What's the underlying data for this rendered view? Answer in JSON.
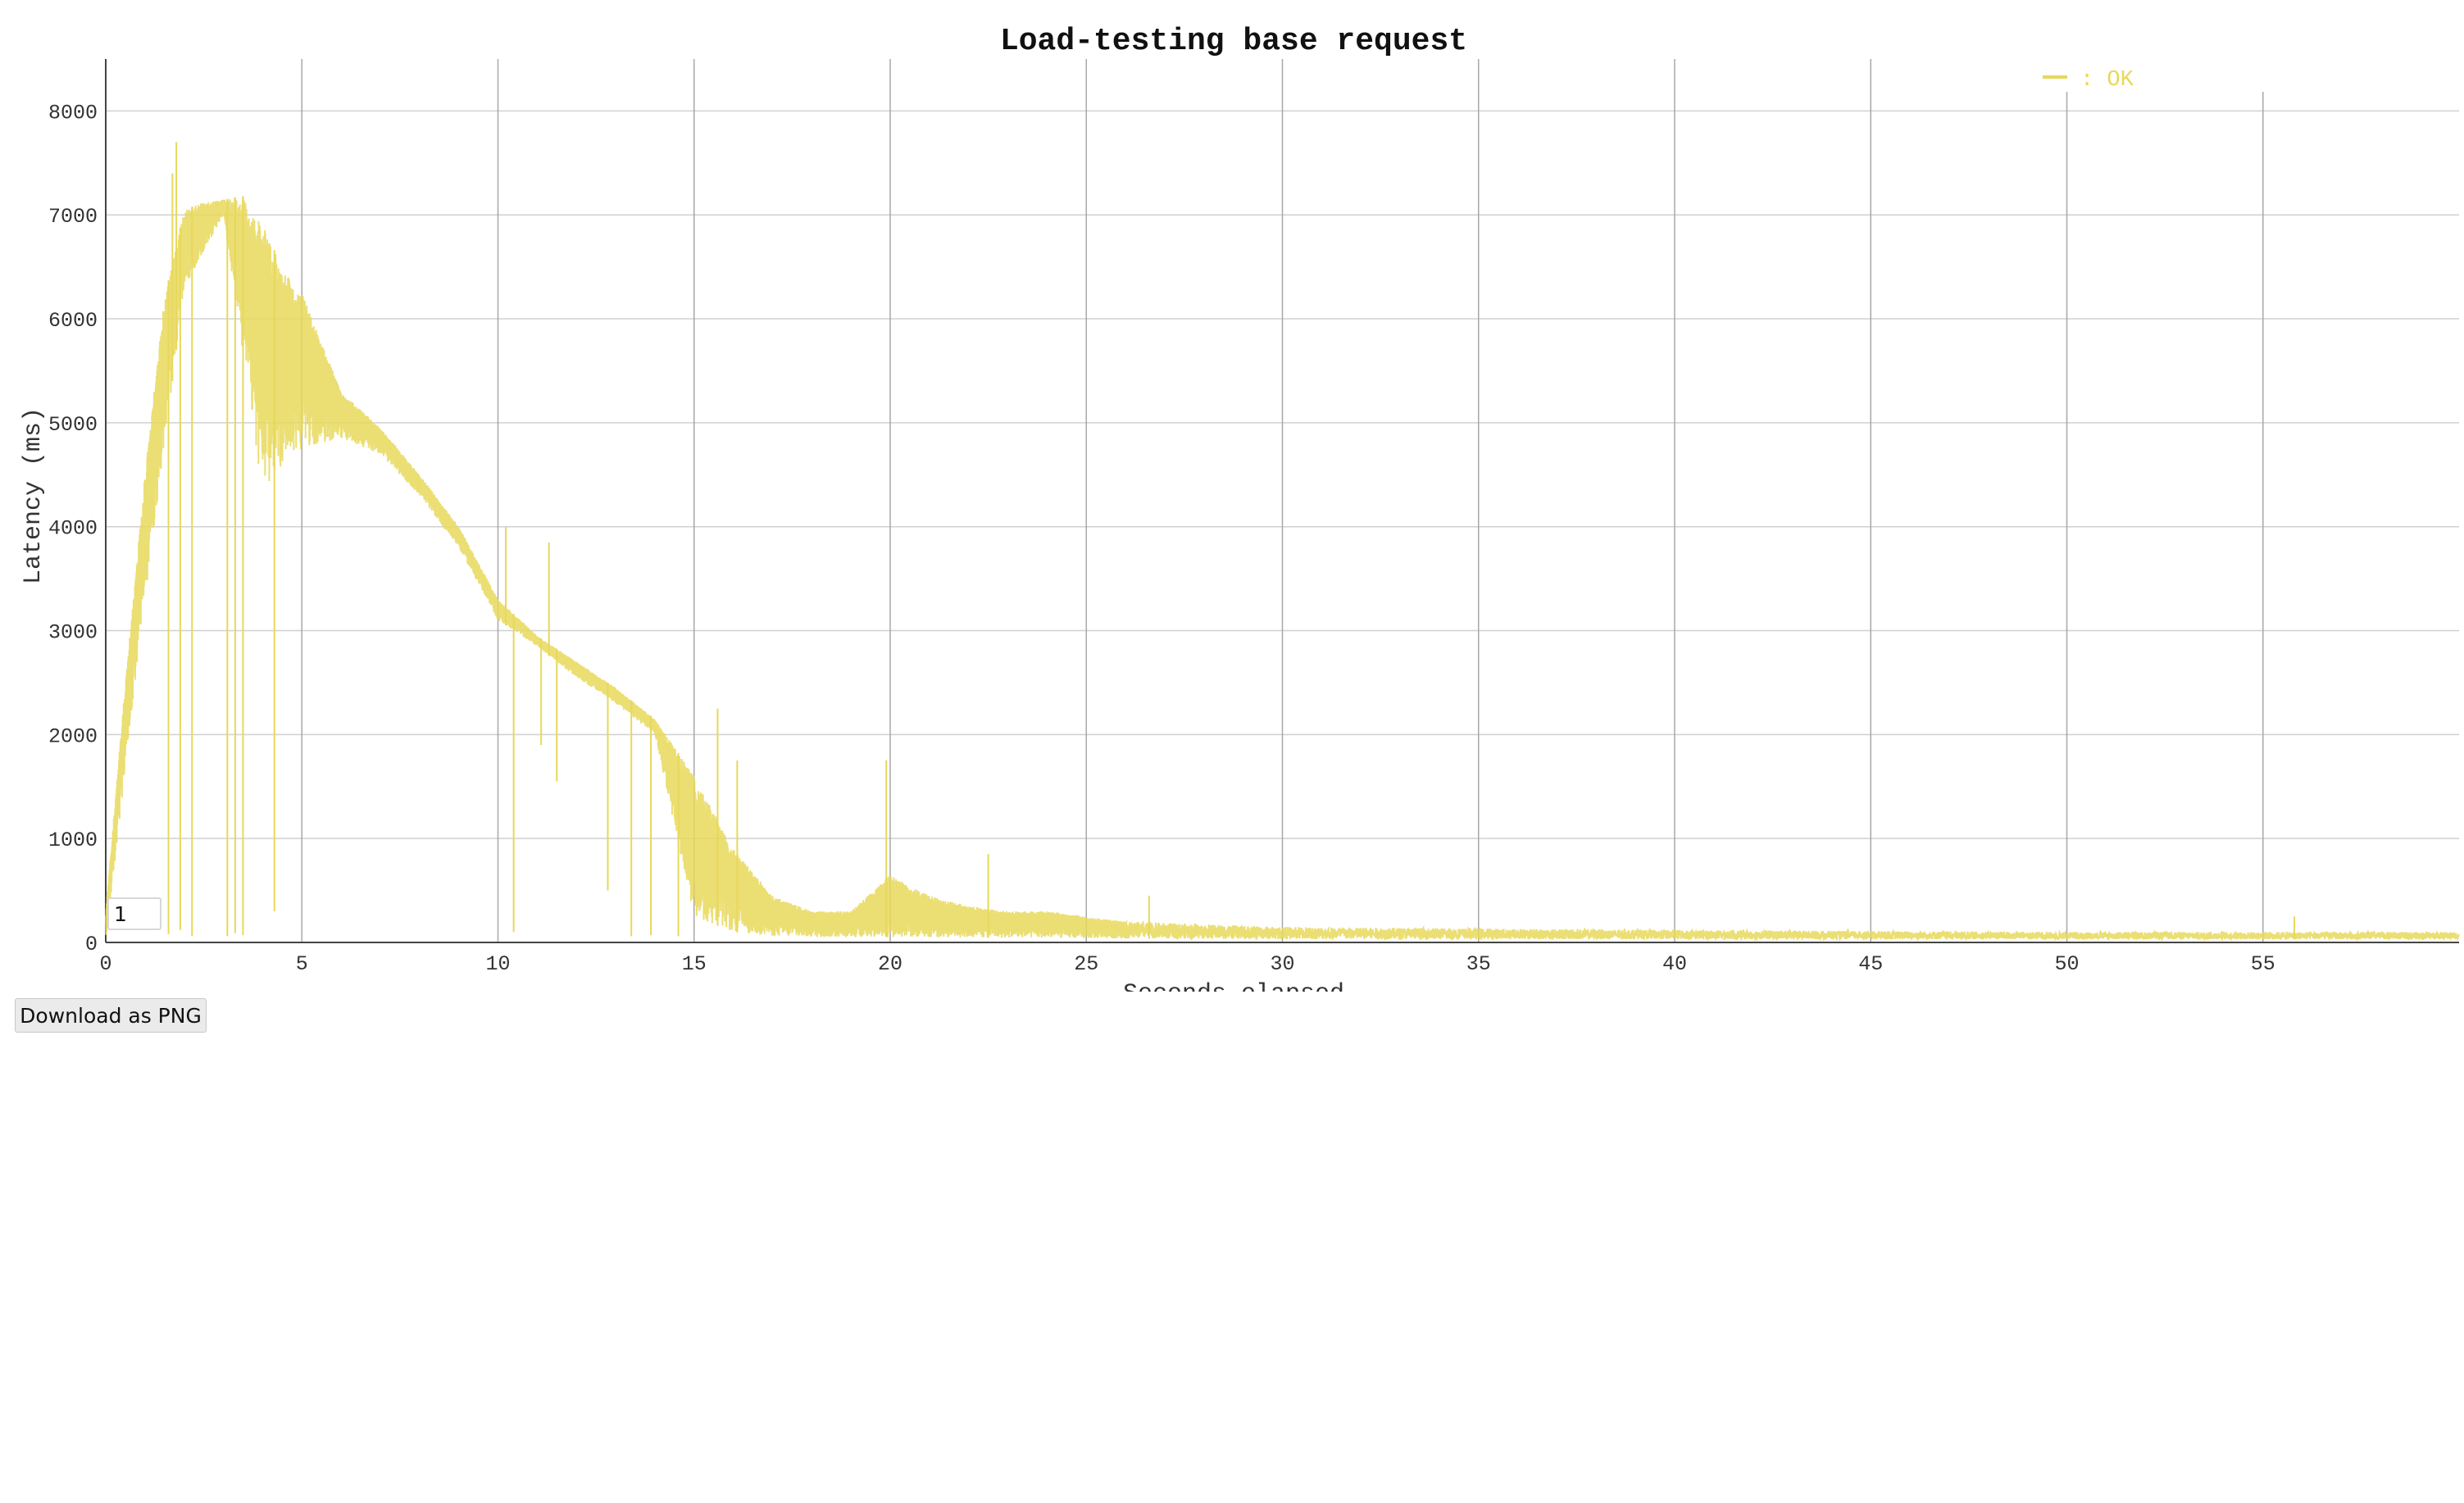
{
  "chart_data": {
    "type": "line",
    "title": "Load-testing base request",
    "xlabel": "Seconds elapsed",
    "ylabel": "Latency (ms)",
    "xlim": [
      0,
      60
    ],
    "ylim": [
      0,
      8500
    ],
    "x_ticks": [
      "0",
      "5",
      "10",
      "15",
      "20",
      "25",
      "30",
      "35",
      "40",
      "45",
      "50",
      "55"
    ],
    "y_ticks": [
      "0",
      "1000",
      "2000",
      "3000",
      "4000",
      "5000",
      "6000",
      "7000",
      "8000"
    ],
    "grid": true,
    "legend_position": "top-right",
    "series": [
      {
        "name": ": OK",
        "color": "#e8d85a",
        "upper_envelope": [
          [
            0,
            300
          ],
          [
            0.5,
            2500
          ],
          [
            1,
            4500
          ],
          [
            1.5,
            6200
          ],
          [
            2,
            7050
          ],
          [
            2.5,
            7120
          ],
          [
            3,
            7150
          ],
          [
            3.5,
            7180
          ],
          [
            4,
            6900
          ],
          [
            4.5,
            6500
          ],
          [
            5,
            6250
          ],
          [
            6,
            5300
          ],
          [
            7,
            4950
          ],
          [
            8,
            4500
          ],
          [
            9,
            4000
          ],
          [
            10,
            3300
          ],
          [
            11,
            2950
          ],
          [
            12,
            2700
          ],
          [
            13,
            2450
          ],
          [
            14,
            2150
          ],
          [
            15,
            1600
          ],
          [
            16,
            900
          ],
          [
            17,
            450
          ],
          [
            18,
            300
          ],
          [
            19,
            300
          ],
          [
            20,
            650
          ],
          [
            21,
            450
          ],
          [
            22,
            350
          ],
          [
            23,
            300
          ],
          [
            24,
            300
          ],
          [
            25,
            250
          ],
          [
            26,
            200
          ],
          [
            30,
            150
          ],
          [
            40,
            120
          ],
          [
            50,
            100
          ],
          [
            60,
            100
          ]
        ],
        "lower_envelope": [
          [
            0,
            0
          ],
          [
            1,
            3300
          ],
          [
            2,
            6300
          ],
          [
            3,
            7000
          ],
          [
            4,
            4300
          ],
          [
            4.5,
            4600
          ],
          [
            5,
            4750
          ],
          [
            6,
            4850
          ],
          [
            7,
            4700
          ],
          [
            8,
            4300
          ],
          [
            9,
            3800
          ],
          [
            10,
            3100
          ],
          [
            11,
            2850
          ],
          [
            12,
            2550
          ],
          [
            13,
            2300
          ],
          [
            14,
            2000
          ],
          [
            15,
            250
          ],
          [
            16,
            100
          ],
          [
            17,
            60
          ],
          [
            18,
            50
          ],
          [
            20,
            50
          ],
          [
            25,
            40
          ],
          [
            30,
            30
          ],
          [
            60,
            30
          ]
        ],
        "spikes": [
          [
            1.7,
            7400
          ],
          [
            1.8,
            7700
          ],
          [
            10.2,
            4000
          ],
          [
            11.3,
            3850
          ],
          [
            15.6,
            2250
          ],
          [
            16.1,
            1750
          ],
          [
            19.9,
            1750
          ],
          [
            22.5,
            850
          ],
          [
            26.6,
            450
          ],
          [
            55.8,
            250
          ]
        ],
        "drops": [
          [
            1.6,
            80
          ],
          [
            1.9,
            120
          ],
          [
            2.2,
            60
          ],
          [
            3.1,
            60
          ],
          [
            3.3,
            90
          ],
          [
            3.5,
            70
          ],
          [
            4.3,
            300
          ],
          [
            10.4,
            100
          ],
          [
            11.1,
            1900
          ],
          [
            11.5,
            1550
          ],
          [
            12.8,
            500
          ],
          [
            13.4,
            60
          ],
          [
            13.9,
            70
          ],
          [
            14.6,
            60
          ]
        ]
      }
    ]
  },
  "controls": {
    "smoothing_value": "1",
    "download_label": "Download as PNG"
  }
}
